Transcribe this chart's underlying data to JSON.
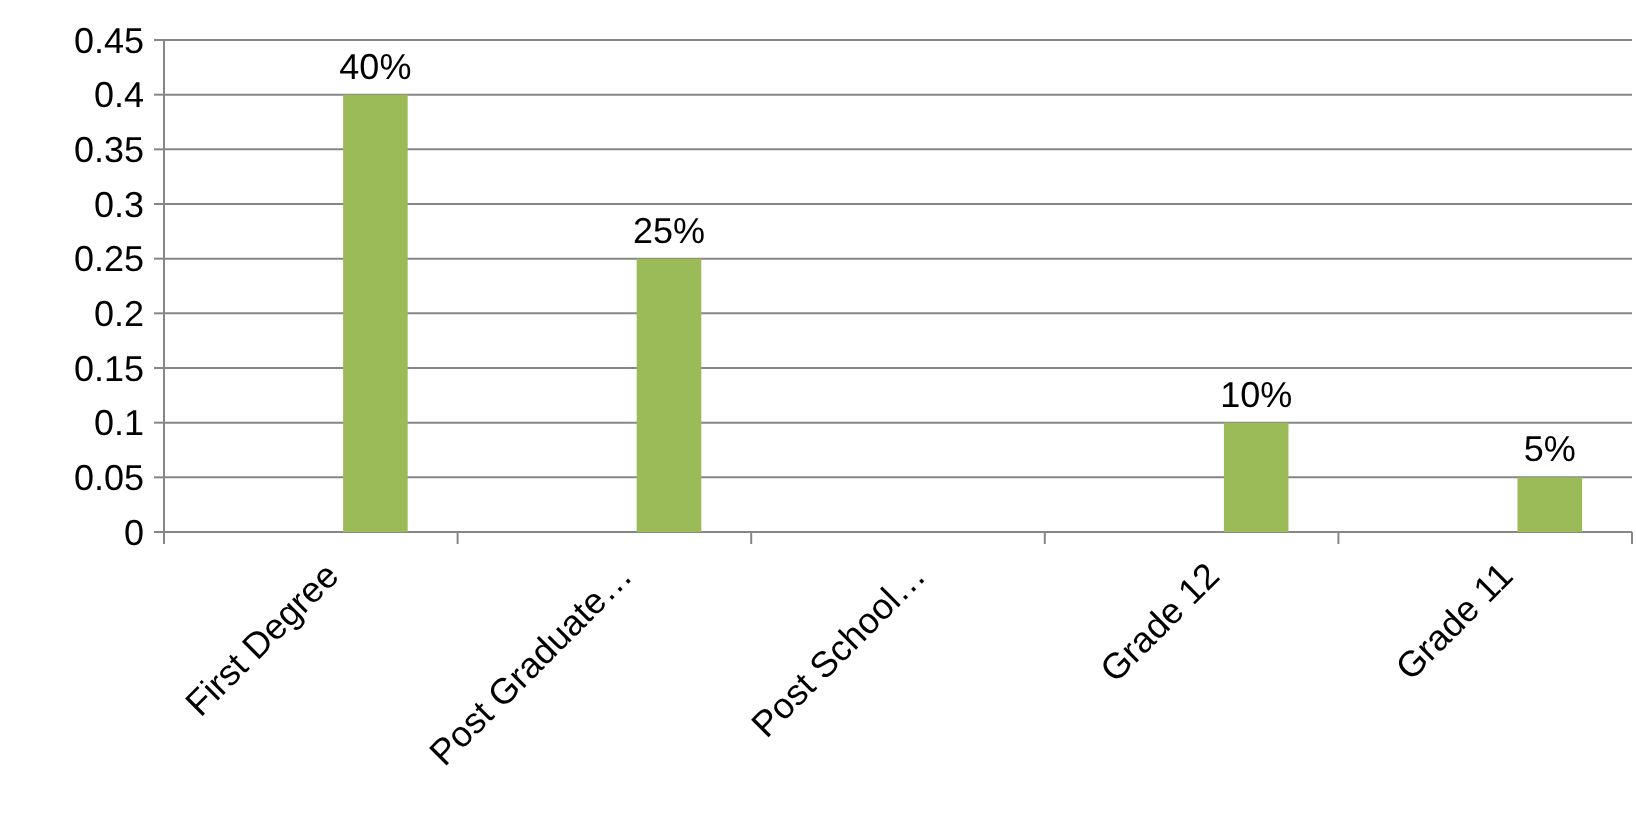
{
  "chart_data": {
    "type": "bar",
    "categories": [
      "First Degree",
      "Post Graduate…",
      "Post School…",
      "Grade 12",
      "Grade 11"
    ],
    "values": [
      0.4,
      0.25,
      null,
      0.1,
      0.05
    ],
    "value_labels": [
      "40%",
      "25%",
      null,
      "10%",
      "5%"
    ],
    "color": "#9bbb59",
    "ylim": [
      0,
      0.45
    ],
    "yticks": [
      0,
      0.05,
      0.1,
      0.15,
      0.2,
      0.25,
      0.3,
      0.35,
      0.4,
      0.45
    ],
    "grid": "y"
  }
}
